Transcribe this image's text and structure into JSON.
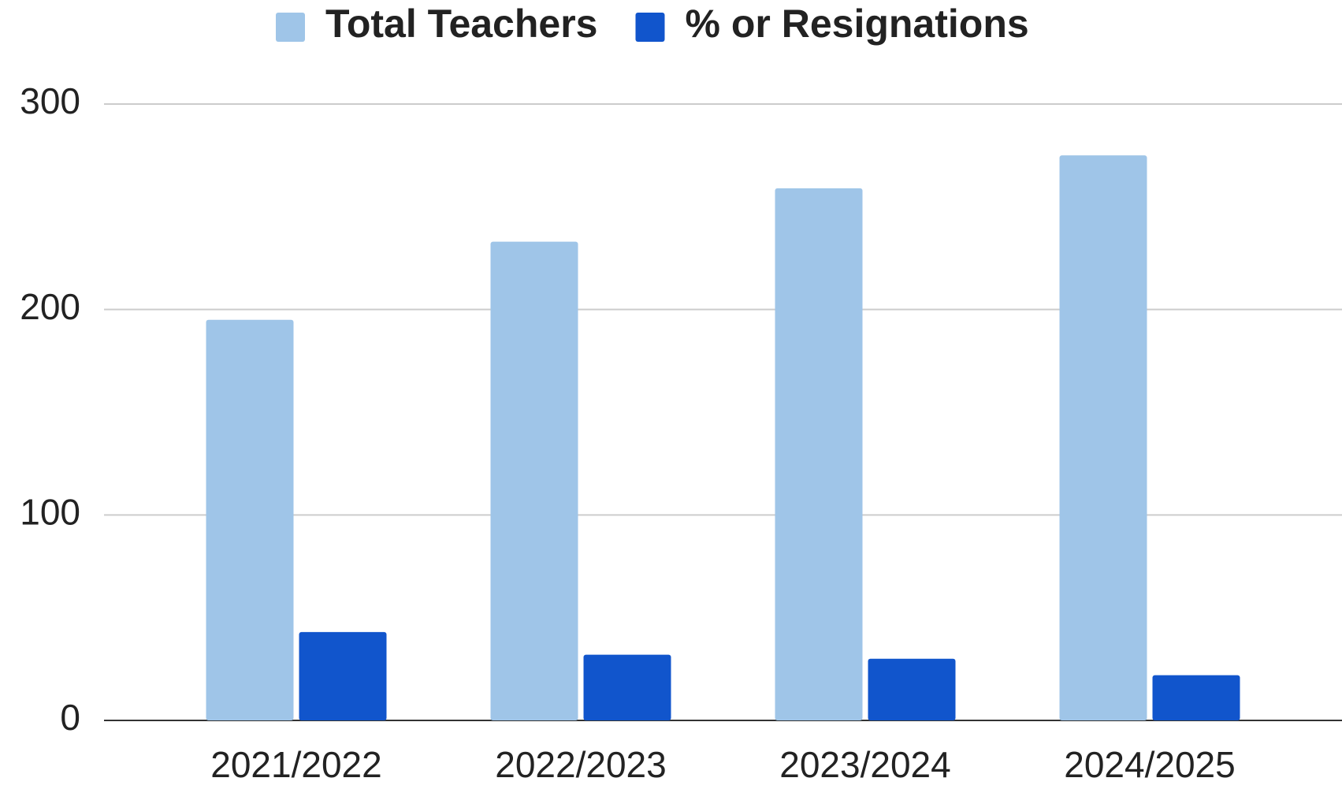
{
  "chart_data": {
    "type": "bar",
    "categories": [
      "2021/2022",
      "2022/2023",
      "2023/2024",
      "2024/2025"
    ],
    "series": [
      {
        "name": "Total Teachers",
        "color": "#9fc5e8",
        "values": [
          195,
          233,
          259,
          275
        ]
      },
      {
        "name": "% or Resignations",
        "color": "#1155cc",
        "values": [
          43,
          32,
          30,
          22
        ]
      }
    ],
    "ylim": [
      0,
      300
    ],
    "yticks": [
      0,
      100,
      200,
      300
    ],
    "grid": true,
    "legend": "top"
  }
}
